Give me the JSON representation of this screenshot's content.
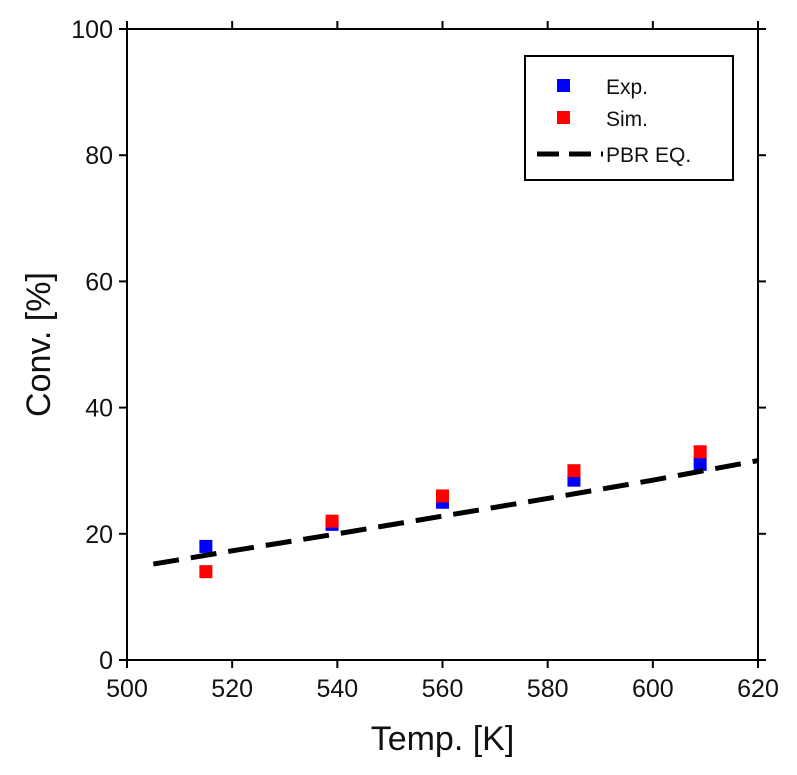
{
  "chart_data": {
    "type": "scatter",
    "title": "",
    "xlabel": "Temp. [K]",
    "ylabel": "Conv. [%]",
    "xlim": [
      500,
      620
    ],
    "ylim": [
      0,
      100
    ],
    "x_ticks": [
      500,
      520,
      540,
      560,
      580,
      600,
      620
    ],
    "y_ticks": [
      0,
      20,
      40,
      60,
      80,
      100
    ],
    "legend_position": "top-right",
    "series": [
      {
        "name": "Exp.",
        "kind": "scatter",
        "marker": "square",
        "color": "#0000ff",
        "x": [
          515,
          539,
          560,
          585,
          609
        ],
        "y": [
          18,
          21.5,
          25,
          28.5,
          31
        ]
      },
      {
        "name": "Sim.",
        "kind": "scatter",
        "marker": "square",
        "color": "#ff0000",
        "x": [
          515,
          539,
          560,
          585,
          609
        ],
        "y": [
          14,
          22,
          26,
          30,
          33
        ]
      },
      {
        "name": "PBR EQ.",
        "kind": "line",
        "dash": "dashed",
        "color": "#000000",
        "x": [
          505,
          520,
          540,
          560,
          580,
          600,
          620
        ],
        "y": [
          15.2,
          17.3,
          20.0,
          22.8,
          25.6,
          28.5,
          31.6
        ]
      }
    ]
  }
}
